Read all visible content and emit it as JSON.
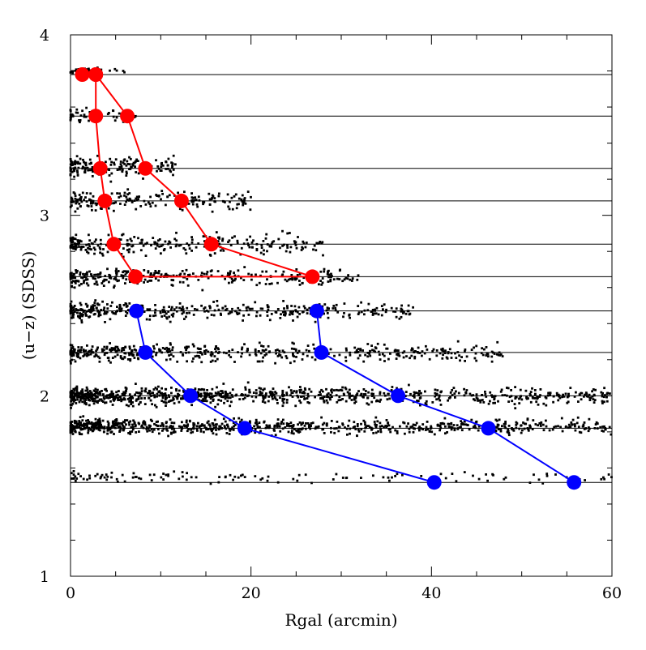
{
  "chart_data": {
    "type": "scatter",
    "title": "",
    "xlabel": "Rgal (arcmin)",
    "ylabel": "(u−z) (SDSS)",
    "xlim": [
      0,
      60
    ],
    "ylim": [
      1,
      4
    ],
    "x_ticks": [
      "0",
      "20",
      "40",
      "60"
    ],
    "y_ticks": [
      "1",
      "2",
      "3",
      "4"
    ],
    "grid": "horizontal reference lines at bin values",
    "legend": "none",
    "reference_lines_y": [
      3.78,
      3.55,
      3.26,
      3.08,
      2.84,
      2.66,
      2.47,
      2.24,
      2.0,
      1.82,
      1.52
    ],
    "series": [
      {
        "color": "#ff0000",
        "marker": "filled-circle",
        "points": [
          {
            "x": 1.3,
            "y": 3.78
          },
          {
            "x": 2.8,
            "y": 3.78
          },
          {
            "x": 2.8,
            "y": 3.55
          },
          {
            "x": 3.3,
            "y": 3.26
          },
          {
            "x": 3.8,
            "y": 3.08
          },
          {
            "x": 4.8,
            "y": 2.84
          },
          {
            "x": 7.2,
            "y": 2.66
          },
          {
            "x": 26.8,
            "y": 2.66
          },
          {
            "x": 15.6,
            "y": 2.84
          },
          {
            "x": 12.3,
            "y": 3.08
          },
          {
            "x": 8.3,
            "y": 3.26
          },
          {
            "x": 6.3,
            "y": 3.55
          },
          {
            "x": 2.8,
            "y": 3.78
          }
        ]
      },
      {
        "color": "#0000ff",
        "marker": "filled-circle",
        "points": [
          {
            "x": 7.3,
            "y": 2.47
          },
          {
            "x": 8.3,
            "y": 2.24
          },
          {
            "x": 13.3,
            "y": 2.0
          },
          {
            "x": 19.3,
            "y": 1.82
          },
          {
            "x": 40.3,
            "y": 1.52
          }
        ]
      },
      {
        "color": "#0000ff",
        "marker": "filled-circle",
        "points": [
          {
            "x": 27.3,
            "y": 2.47
          },
          {
            "x": 27.8,
            "y": 2.24
          },
          {
            "x": 36.3,
            "y": 2.0
          },
          {
            "x": 46.3,
            "y": 1.82
          },
          {
            "x": 55.8,
            "y": 1.52
          }
        ]
      }
    ],
    "scatter_clouds": {
      "color": "#000000",
      "note": "dense background of individual galaxy points",
      "bands": [
        {
          "y": 3.8,
          "ysd": 0.03,
          "xmax": 6,
          "n": 30
        },
        {
          "y": 3.55,
          "ysd": 0.05,
          "xmax": 8,
          "n": 50
        },
        {
          "y": 3.27,
          "ysd": 0.07,
          "xmax": 12,
          "n": 180
        },
        {
          "y": 3.08,
          "ysd": 0.07,
          "xmax": 20,
          "n": 200
        },
        {
          "y": 2.84,
          "ysd": 0.07,
          "xmax": 28,
          "n": 260
        },
        {
          "y": 2.66,
          "ysd": 0.06,
          "xmax": 32,
          "n": 300
        },
        {
          "y": 2.47,
          "ysd": 0.06,
          "xmax": 38,
          "n": 380
        },
        {
          "y": 2.24,
          "ysd": 0.06,
          "xmax": 48,
          "n": 480
        },
        {
          "y": 2.0,
          "ysd": 0.06,
          "xmax": 60,
          "n": 900
        },
        {
          "y": 1.83,
          "ysd": 0.05,
          "xmax": 60,
          "n": 800
        },
        {
          "y": 1.55,
          "ysd": 0.04,
          "xmax": 60,
          "n": 120
        }
      ]
    }
  }
}
